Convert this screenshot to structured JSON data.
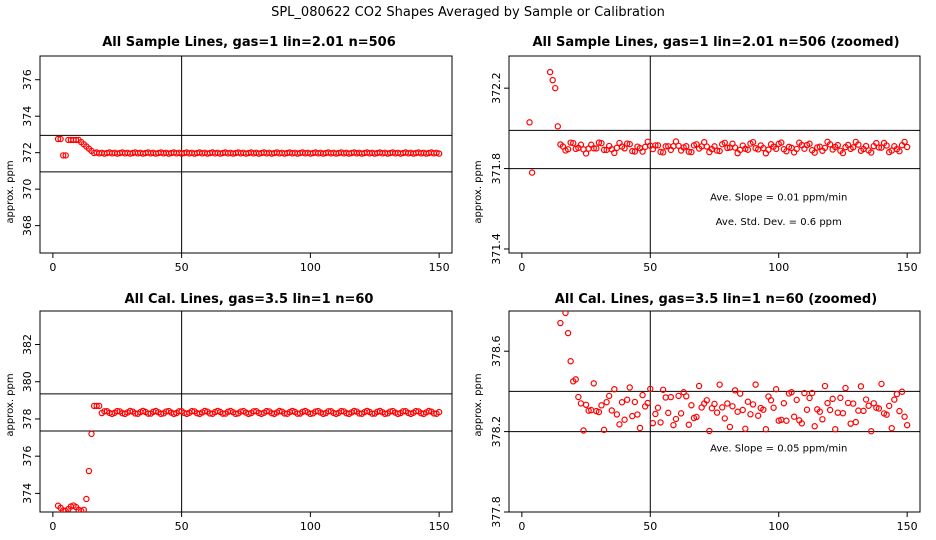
{
  "page_title": "SPL_080622  CO2 Shapes Averaged by Sample or Calibration",
  "colors": {
    "points": "#ff0000",
    "axes": "#000000",
    "background": "#ffffff"
  },
  "chart_data": [
    {
      "type": "scatter",
      "title": "All Sample Lines, gas=1 lin=2.01 n=506",
      "ylabel": "approx. ppm",
      "xlabel": "",
      "xlim": [
        -5,
        155
      ],
      "ylim": [
        366.5,
        377.3
      ],
      "xticks": [
        0,
        50,
        100,
        150
      ],
      "yticks": [
        368,
        370,
        372,
        374,
        376
      ],
      "yticklabels": [
        "368",
        "370",
        "372",
        "374",
        "376"
      ],
      "hlines": [
        372.95,
        370.95
      ],
      "vlines": [
        50
      ],
      "annotations": [],
      "series": [
        {
          "x": [],
          "y": []
        }
      ]
    },
    {
      "type": "scatter",
      "title": "All Sample Lines, gas=1 lin=2.01 n=506 (zoomed)",
      "ylabel": "approx. ppm",
      "xlabel": "",
      "xlim": [
        -5,
        155
      ],
      "ylim": [
        371.38,
        372.36
      ],
      "xticks": [
        0,
        50,
        100,
        150
      ],
      "yticks": [
        371.4,
        371.8,
        372.2
      ],
      "yticklabels": [
        "371.4",
        "371.8",
        "372.2"
      ],
      "hlines": [
        371.99,
        371.8
      ],
      "vlines": [
        50
      ],
      "annotations": [
        {
          "text": "Ave. Slope =  0.01  ppm/min",
          "x": 100,
          "y": 371.64
        },
        {
          "text": "Ave. Std. Dev. =  0.6  ppm",
          "x": 100,
          "y": 371.52
        }
      ],
      "series": [
        {
          "x": [],
          "y": []
        }
      ]
    },
    {
      "type": "scatter",
      "title": "All Cal. Lines, gas=3.5 lin=1 n=60",
      "ylabel": "approx. ppm",
      "xlabel": "",
      "xlim": [
        -5,
        155
      ],
      "ylim": [
        373.0,
        383.8
      ],
      "xticks": [
        0,
        50,
        100,
        150
      ],
      "yticks": [
        374,
        376,
        378,
        380,
        382
      ],
      "yticklabels": [
        "374",
        "376",
        "378",
        "380",
        "382"
      ],
      "hlines": [
        379.35,
        377.35
      ],
      "vlines": [
        50
      ],
      "annotations": [],
      "series": [
        {
          "x": [],
          "y": []
        }
      ]
    },
    {
      "type": "scatter",
      "title": "All Cal. Lines, gas=3.5 lin=1 n=60 (zoomed)",
      "ylabel": "approx. ppm",
      "xlabel": "",
      "xlim": [
        -5,
        155
      ],
      "ylim": [
        377.8,
        378.8
      ],
      "xticks": [
        0,
        50,
        100,
        150
      ],
      "yticks": [
        377.8,
        378.2,
        378.6
      ],
      "yticklabels": [
        "377.8",
        "378.2",
        "378.6"
      ],
      "hlines": [
        378.4,
        378.2
      ],
      "vlines": [
        50
      ],
      "annotations": [
        {
          "text": "Ave. Slope =  0.05  ppm/min",
          "x": 100,
          "y": 378.1
        }
      ],
      "series": [
        {
          "x": [],
          "y": []
        }
      ]
    }
  ]
}
